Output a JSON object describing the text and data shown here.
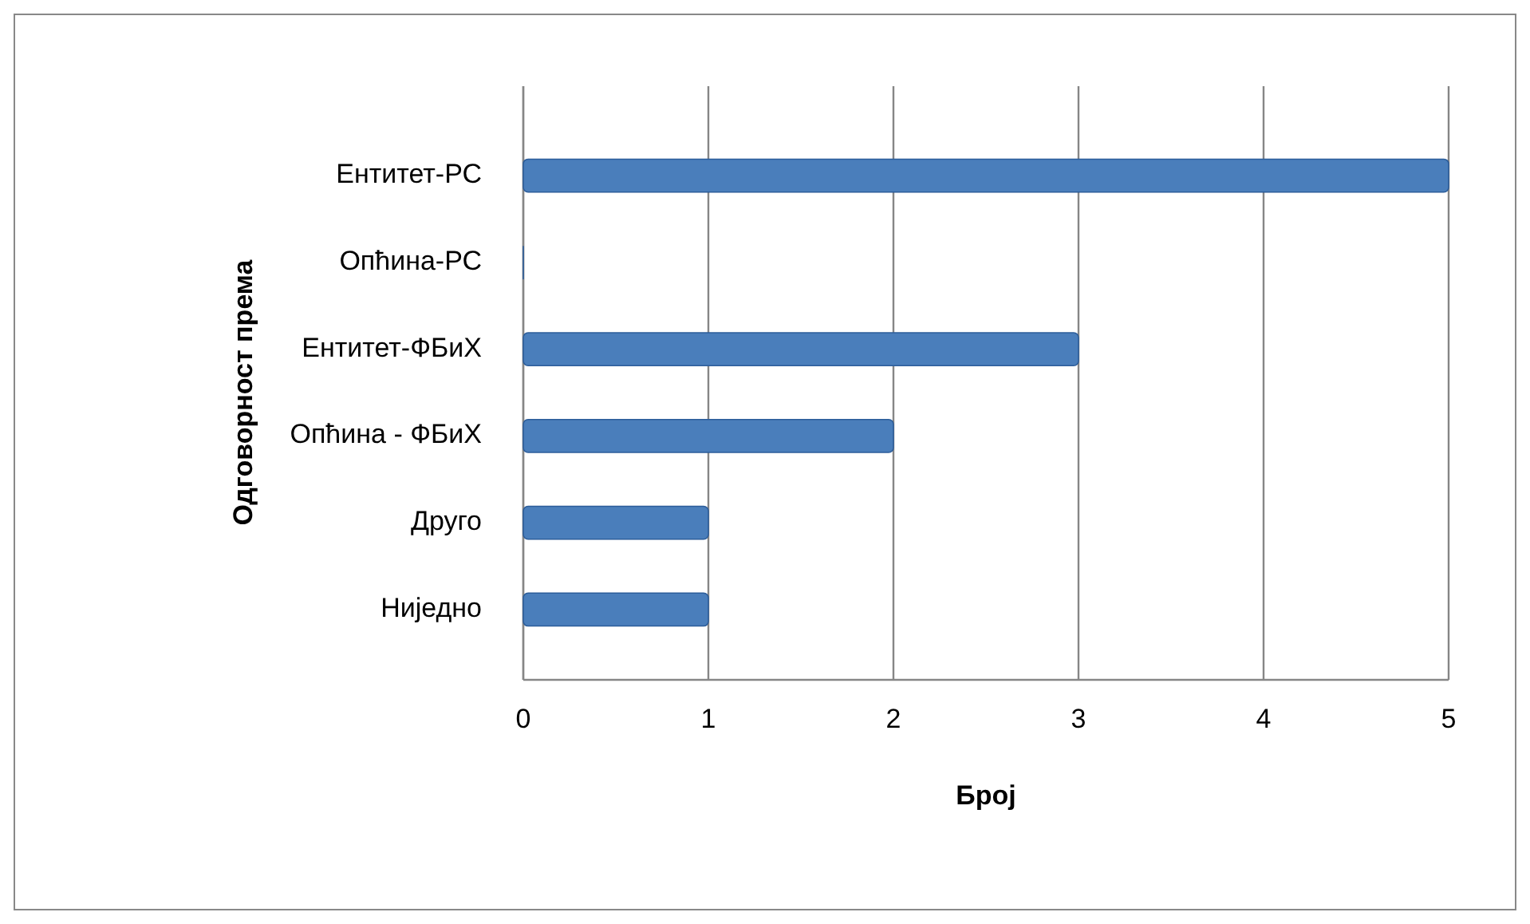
{
  "chart_data": {
    "type": "bar",
    "orientation": "horizontal",
    "ylabel": "Одговорност према",
    "xlabel": "Број",
    "categories": [
      "Ентитет-РС",
      "Опћина-РС",
      "Ентитет-ФБиХ",
      "Опћина - ФБиХ",
      "Друго",
      "Ниједно"
    ],
    "values": [
      5,
      0,
      3,
      2,
      1,
      1
    ],
    "color": "#4a7ebb",
    "xlim": [
      0,
      5
    ],
    "xticks": [
      0,
      1,
      2,
      3,
      4,
      5
    ],
    "grid": "x"
  }
}
